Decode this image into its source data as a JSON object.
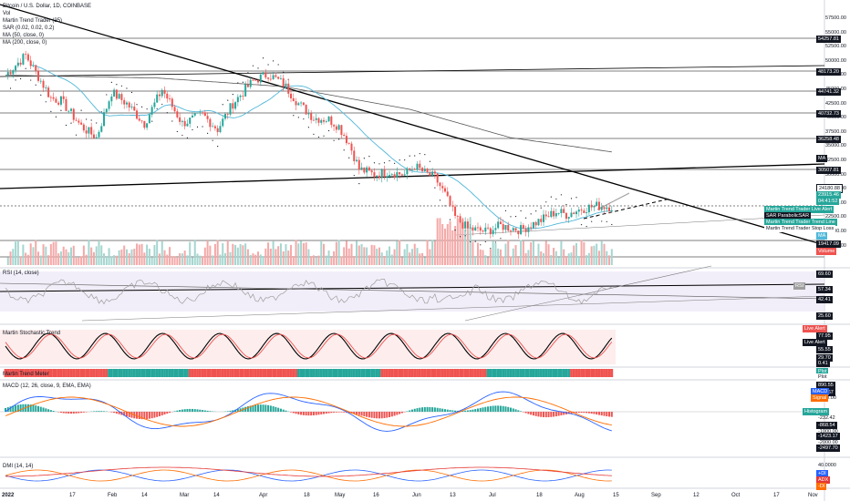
{
  "header": {
    "symbol": "Bitcoin / U.S. Dollar, 1D, COINBASE",
    "indicators": [
      "Vol",
      "Martin Trend Trader (35)",
      "SAR (0.02, 0.02, 0.2)",
      "MA (50, close, 0)",
      "MA (200, close, 0)"
    ]
  },
  "pane_titles": {
    "rsi": "RSI (14, close)",
    "stoch": "Martin Stochastic Trend",
    "meter": "Martin Trend Meter",
    "macd": "MACD (12, 26, close, 9, EMA, EMA)",
    "dmi": "DMI (14, 14)"
  },
  "price_scale": [
    "57500.00",
    "55000.00",
    "52500.00",
    "50000.00",
    "47500.00",
    "45000.00",
    "42500.00",
    "40000.00",
    "37500.00",
    "35000.00",
    "32500.00",
    "30000.00",
    "27500.00",
    "25000.00",
    "22500.00",
    "20000.00",
    "17500.00"
  ],
  "price_tags": [
    {
      "label": "54257.81",
      "color": "#131722"
    },
    {
      "label": "48173.20",
      "color": "#131722"
    },
    {
      "label": "44741.32",
      "color": "#131722"
    },
    {
      "label": "40732.73",
      "color": "#131722"
    },
    {
      "label": "36258.48",
      "color": "#131722"
    },
    {
      "label": "MA",
      "color": "#131722"
    },
    {
      "label": "30507.81",
      "color": "#131722"
    },
    {
      "label": "24180.88",
      "color": "#ffffff"
    },
    {
      "label": "23915.46",
      "color": "#26a69a"
    },
    {
      "label": "04:41:52",
      "color": "#26a69a"
    },
    {
      "label": "MA",
      "color": "#4fb7d9"
    },
    {
      "label": "19417.09",
      "color": "#131722"
    },
    {
      "label": "Volume",
      "color": "#ef5350"
    }
  ],
  "overlay_tags": [
    {
      "label": "Martin Trend Trader Live Alert",
      "color": "#26a69a"
    },
    {
      "label": "SAR ParabolicSAR",
      "color": "#131722"
    },
    {
      "label": "Martin Trend Trader Trend Line",
      "color": "#26a69a"
    },
    {
      "label": "Martin Trend Trader Stop Loss",
      "color": "#ffffff"
    }
  ],
  "rsi_scale": [
    "69.60",
    "57.34",
    "42.41",
    "25.60"
  ],
  "rsi_tag": "RSI",
  "stoch_scale": [
    "77.95",
    "55.55",
    "29.70",
    "0.41"
  ],
  "stoch_tags": [
    "Live Alert",
    "Live Alert"
  ],
  "meter_tags": [
    "Plot",
    "Plot"
  ],
  "macd_scale": [
    "890.55",
    "312.67",
    "1000.00",
    "0.00",
    "-232.42",
    "-868.54",
    "-1000.00",
    "-1423.17",
    "-2000.00",
    "-2497.70"
  ],
  "macd_tags": [
    "MACD",
    "Signal",
    "Histogram"
  ],
  "dmi_scale": [
    "40.0000"
  ],
  "dmi_tags": [
    "+DI",
    "ADX",
    "-DI"
  ],
  "time_axis": [
    "2022",
    "17",
    "Feb",
    "14",
    "Mar",
    "14",
    "Apr",
    "18",
    "May",
    "16",
    "Jun",
    "13",
    "Jul",
    "18",
    "Aug",
    "15",
    "Sep",
    "12",
    "Oct",
    "17",
    "Nov"
  ],
  "colors": {
    "up": "#26a69a",
    "down": "#ef5350",
    "ma50": "#4fb7d9",
    "ma200": "#555555",
    "background": "#ffffff"
  }
}
